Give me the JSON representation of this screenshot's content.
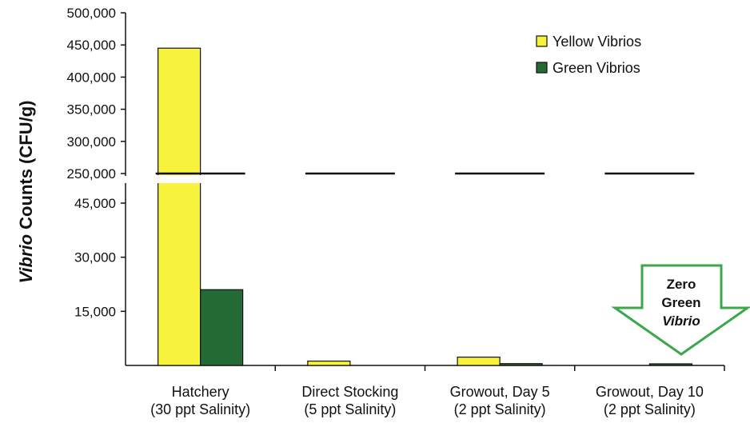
{
  "chart_data": {
    "type": "bar",
    "title": "",
    "ylabel_prefix": "Vibrio",
    "ylabel_rest": " Counts (CFU/g)",
    "broken_axis": true,
    "upper_ticks": [
      {
        "value": 250000,
        "label": "250,000"
      },
      {
        "value": 300000,
        "label": "300,000"
      },
      {
        "value": 350000,
        "label": "350,000"
      },
      {
        "value": 400000,
        "label": "400,000"
      },
      {
        "value": 450000,
        "label": "450,000"
      },
      {
        "value": 500000,
        "label": "500,000"
      }
    ],
    "lower_ticks": [
      {
        "value": 15000,
        "label": "15,000"
      },
      {
        "value": 30000,
        "label": "30,000"
      },
      {
        "value": 45000,
        "label": "45,000"
      }
    ],
    "categories": [
      {
        "line1": "Hatchery",
        "line2": "(30 ppt Salinity)"
      },
      {
        "line1": "Direct Stocking",
        "line2": "(5 ppt Salinity)"
      },
      {
        "line1": "Growout, Day 5",
        "line2": "(2 ppt Salinity)"
      },
      {
        "line1": "Growout, Day 10",
        "line2": "(2 ppt Salinity)"
      }
    ],
    "series": [
      {
        "name": "Yellow Vibrios",
        "color": "#f7f33c",
        "values": [
          445000,
          1200,
          2300,
          0
        ]
      },
      {
        "name": "Green Vibrios",
        "color": "#236a35",
        "values": [
          21000,
          0,
          500,
          400
        ]
      }
    ],
    "legend_position": "top-right",
    "grid": false,
    "annotation": {
      "line1": "Zero",
      "line2": "Green",
      "line3": "Vibrio",
      "icon": "down-arrow-icon",
      "color": "#3aa84a"
    }
  }
}
